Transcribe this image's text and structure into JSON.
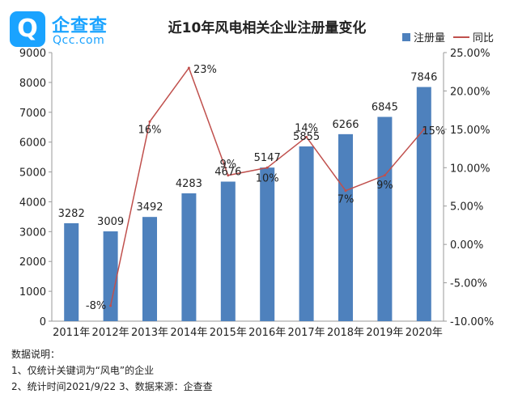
{
  "logo": {
    "icon": "qcc-q-logo-icon",
    "brand_cn": "企查查",
    "brand_en": "Qcc.com",
    "color": "#1aa3ff"
  },
  "chart_data": {
    "type": "bar",
    "title": "近10年风电相关企业注册量变化",
    "categories": [
      "2011年",
      "2012年",
      "2013年",
      "2014年",
      "2015年",
      "2016年",
      "2017年",
      "2018年",
      "2019年",
      "2020年"
    ],
    "series": [
      {
        "name": "注册量",
        "type": "bar",
        "axis": "left",
        "color": "#4e81bd",
        "values": [
          3282,
          3009,
          3492,
          4283,
          4676,
          5147,
          5855,
          6266,
          6845,
          7846
        ],
        "labels": [
          "3282",
          "3009",
          "3492",
          "4283",
          "4676",
          "5147",
          "5855",
          "6266",
          "6845",
          "7846"
        ]
      },
      {
        "name": "同比",
        "type": "line",
        "axis": "right",
        "color": "#c0504d",
        "values": [
          null,
          -8,
          16,
          23,
          9,
          10,
          14,
          7,
          9,
          15
        ],
        "labels": [
          "",
          "-8%",
          "16%",
          "23%",
          "9%",
          "10%",
          "14%",
          "7%",
          "9%",
          "15%"
        ]
      }
    ],
    "y_left": {
      "min": 0,
      "max": 9000,
      "ticks": [
        0,
        1000,
        2000,
        3000,
        4000,
        5000,
        6000,
        7000,
        8000,
        9000
      ],
      "tick_labels": [
        "0",
        "1000",
        "2000",
        "3000",
        "4000",
        "5000",
        "6000",
        "7000",
        "8000",
        "9000"
      ]
    },
    "y_right": {
      "min": -10,
      "max": 25,
      "ticks": [
        -10,
        -5,
        0,
        5,
        10,
        15,
        20,
        25
      ],
      "tick_labels": [
        "-10.00%",
        "-5.00%",
        "0.00%",
        "5.00%",
        "10.00%",
        "15.00%",
        "20.00%",
        "25.00%"
      ]
    },
    "grid": false,
    "legend_position": "top-right"
  },
  "notes": {
    "heading": "数据说明：",
    "line1": "1、仅统计关键词为“风电”的企业",
    "line2": "2、统计时间2021/9/22   3、数据来源：企查查"
  }
}
